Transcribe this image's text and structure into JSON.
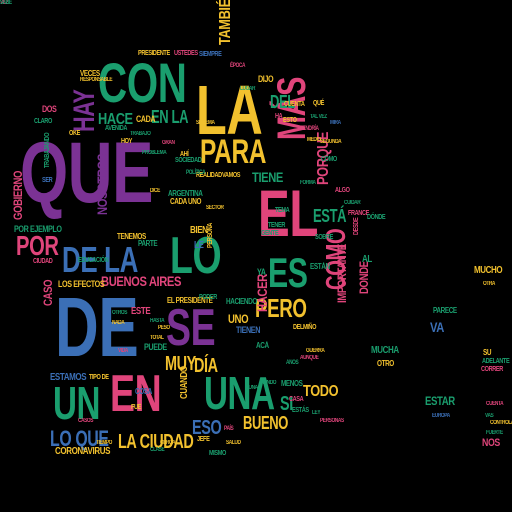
{
  "palette": {
    "background": "#000000",
    "purple": "#7B3294",
    "green": "#1A9E6E",
    "yellow": "#F2C12E",
    "pink": "#E0457B",
    "blue": "#3B6FB6",
    "orange": "#E8902A",
    "teal": "#1FA8A0",
    "lime": "#9BC53D"
  },
  "words": [
    {
      "text": "QUE",
      "color": "purple"
    },
    {
      "text": "CON",
      "color": "green"
    },
    {
      "text": "LA",
      "color": "yellow"
    },
    {
      "text": "PARA",
      "color": "yellow"
    },
    {
      "text": "TAMBIÉN",
      "color": "yellow"
    },
    {
      "text": "MÁS",
      "color": "pink"
    },
    {
      "text": "EL",
      "color": "pink"
    },
    {
      "text": "DE",
      "color": "blue"
    },
    {
      "text": "LO",
      "color": "green"
    },
    {
      "text": "ES",
      "color": "green"
    },
    {
      "text": "POR",
      "color": "pink"
    },
    {
      "text": "DE LA",
      "color": "blue"
    },
    {
      "text": "SE",
      "color": "purple"
    },
    {
      "text": "EN",
      "color": "pink"
    },
    {
      "text": "UN",
      "color": "green"
    },
    {
      "text": "UNA",
      "color": "green"
    },
    {
      "text": "PERO",
      "color": "yellow"
    },
    {
      "text": "COMO",
      "color": "pink"
    },
    {
      "text": "LO QUE",
      "color": "blue"
    },
    {
      "text": "LA CIUDAD",
      "color": "yellow"
    },
    {
      "text": "HAY",
      "color": "purple"
    },
    {
      "text": "HACE",
      "color": "green"
    },
    {
      "text": "EN LA",
      "color": "green"
    },
    {
      "text": "DEL",
      "color": "green"
    },
    {
      "text": "ESTÁ",
      "color": "green"
    },
    {
      "text": "PORQUE",
      "color": "pink"
    },
    {
      "text": "MUY",
      "color": "yellow"
    },
    {
      "text": "DÍA",
      "color": "yellow"
    },
    {
      "text": "ESO",
      "color": "blue"
    },
    {
      "text": "BUENO",
      "color": "yellow"
    },
    {
      "text": "SI",
      "color": "green"
    },
    {
      "text": "TODO",
      "color": "yellow"
    },
    {
      "text": "HACER",
      "color": "pink"
    },
    {
      "text": "TIENE",
      "color": "green"
    },
    {
      "text": "NOSOTROS",
      "color": "purple"
    },
    {
      "text": "GOBIERNO",
      "color": "pink"
    },
    {
      "text": "BUENOS AIRES",
      "color": "pink"
    },
    {
      "text": "VA",
      "color": "blue"
    },
    {
      "text": "MUCHO",
      "color": "yellow"
    },
    {
      "text": "NOS",
      "color": "pink"
    },
    {
      "text": "ESTAR",
      "color": "green"
    },
    {
      "text": "CORONAVIRUS",
      "color": "yellow"
    },
    {
      "text": "CUANDO",
      "color": "yellow"
    },
    {
      "text": "DONDE",
      "color": "pink"
    },
    {
      "text": "IMPORTANTE",
      "color": "pink"
    },
    {
      "text": "POR EJEMPLO",
      "color": "green"
    },
    {
      "text": "DOS",
      "color": "pink"
    },
    {
      "text": "VECES",
      "color": "yellow"
    },
    {
      "text": "CASO",
      "color": "pink"
    },
    {
      "text": "ESTAMOS",
      "color": "blue"
    },
    {
      "text": "UNO",
      "color": "yellow"
    },
    {
      "text": "BIEN",
      "color": "yellow"
    },
    {
      "text": "TIENEN",
      "color": "blue"
    },
    {
      "text": "ESTE",
      "color": "pink"
    },
    {
      "text": "LOS EFECTOS",
      "color": "yellow"
    },
    {
      "text": "MUCHA",
      "color": "green"
    },
    {
      "text": "EL PRESIDENTE",
      "color": "yellow"
    },
    {
      "text": "PUEDE",
      "color": "green"
    },
    {
      "text": "AL",
      "color": "green"
    },
    {
      "text": "DIJO",
      "color": "yellow"
    },
    {
      "text": "HACIENDO",
      "color": "green"
    },
    {
      "text": "TENEMOS",
      "color": "yellow"
    },
    {
      "text": "ESTÁN",
      "color": "green"
    },
    {
      "text": "CADA",
      "color": "yellow"
    },
    {
      "text": "LE",
      "color": "blue"
    },
    {
      "text": "YA",
      "color": "green"
    },
    {
      "text": "PARTE",
      "color": "green"
    },
    {
      "text": "OTRO",
      "color": "yellow"
    },
    {
      "text": "PARECE",
      "color": "green"
    },
    {
      "text": "CADA UNO",
      "color": "yellow"
    },
    {
      "text": "ARGENTINA",
      "color": "green"
    },
    {
      "text": "PRESIDENTE",
      "color": "yellow"
    },
    {
      "text": "USTEDES",
      "color": "pink"
    },
    {
      "text": "SIEMPRE",
      "color": "blue"
    },
    {
      "text": "COSA",
      "color": "blue"
    },
    {
      "text": "MENOS",
      "color": "green"
    },
    {
      "text": "ACÁ",
      "color": "green"
    },
    {
      "text": "JEFE",
      "color": "yellow"
    },
    {
      "text": "MISMO",
      "color": "green"
    },
    {
      "text": "TIPO DE",
      "color": "yellow"
    },
    {
      "text": "FRANCE",
      "color": "pink"
    },
    {
      "text": "SOBRE",
      "color": "green"
    },
    {
      "text": "PERSONA",
      "color": "yellow"
    },
    {
      "text": "SOCIEDAD",
      "color": "green"
    },
    {
      "text": "REALIDAD",
      "color": "yellow"
    },
    {
      "text": "VAMOS",
      "color": "yellow"
    },
    {
      "text": "EDUCACIÓN",
      "color": "green"
    },
    {
      "text": "CLARO",
      "color": "green"
    },
    {
      "text": "AVENIDA",
      "color": "green"
    },
    {
      "text": "TRABAJANDO",
      "color": "green"
    },
    {
      "text": "SER",
      "color": "blue"
    },
    {
      "text": "CIUDAD",
      "color": "pink"
    },
    {
      "text": "CASA",
      "color": "pink"
    },
    {
      "text": "DELMIÑO",
      "color": "yellow"
    },
    {
      "text": "AHÍ",
      "color": "yellow"
    },
    {
      "text": "OKE",
      "color": "yellow"
    },
    {
      "text": "TEMA",
      "color": "green"
    },
    {
      "text": "TENER",
      "color": "green"
    },
    {
      "text": "GENTE",
      "color": "green"
    },
    {
      "text": "OTRA",
      "color": "yellow"
    },
    {
      "text": "PODER",
      "color": "green"
    },
    {
      "text": "DESDE",
      "color": "pink"
    },
    {
      "text": "CUENTA",
      "color": "yellow"
    },
    {
      "text": "SU",
      "color": "yellow"
    },
    {
      "text": "ADELANTE",
      "color": "green"
    },
    {
      "text": "ESTO",
      "color": "yellow"
    },
    {
      "text": "ALGO",
      "color": "pink"
    },
    {
      "text": "ESTÁS",
      "color": "green"
    },
    {
      "text": "CORRER",
      "color": "pink"
    },
    {
      "text": "DÓNDE",
      "color": "green"
    },
    {
      "text": "CÓMO",
      "color": "green"
    },
    {
      "text": "FUE",
      "color": "yellow"
    },
    {
      "text": "HOY",
      "color": "yellow"
    },
    {
      "text": "HA",
      "color": "pink"
    },
    {
      "text": "QUÉ",
      "color": "yellow"
    },
    {
      "text": "RESPONSABLE",
      "color": "yellow"
    },
    {
      "text": "EUROPA",
      "color": "blue"
    },
    {
      "text": "CUENTA",
      "color": "pink"
    },
    {
      "text": "VAS",
      "color": "green"
    },
    {
      "text": "DICE",
      "color": "yellow"
    },
    {
      "text": "TRABAJO",
      "color": "green"
    },
    {
      "text": "SEGUNDA",
      "color": "yellow"
    },
    {
      "text": "MEDIO",
      "color": "yellow"
    },
    {
      "text": "FUERTE",
      "color": "green"
    },
    {
      "text": "CONTROLAR",
      "color": "yellow"
    },
    {
      "text": "TAL VEZ",
      "color": "green"
    },
    {
      "text": "TENDRÍA",
      "color": "pink"
    },
    {
      "text": "MIRA",
      "color": "blue"
    },
    {
      "text": "CUIDAR",
      "color": "green"
    },
    {
      "text": "ÉPOCA",
      "color": "pink"
    },
    {
      "text": "LUGAR",
      "color": "green"
    },
    {
      "text": "SALUD",
      "color": "yellow"
    },
    {
      "text": "PAÍS",
      "color": "pink"
    },
    {
      "text": "CLASE",
      "color": "green"
    },
    {
      "text": "CERCA",
      "color": "yellow"
    },
    {
      "text": "AÑOS",
      "color": "green"
    },
    {
      "text": "AUNQUE",
      "color": "pink"
    },
    {
      "text": "GUERRA",
      "color": "yellow"
    },
    {
      "text": "LEY",
      "color": "green"
    },
    {
      "text": "PERSONAS",
      "color": "pink"
    },
    {
      "text": "LUNA",
      "color": "green"
    },
    {
      "text": "MUNDO",
      "color": "green"
    },
    {
      "text": "TOTAL",
      "color": "yellow"
    },
    {
      "text": "PESO",
      "color": "yellow"
    },
    {
      "text": "HASTA",
      "color": "green"
    },
    {
      "text": "VIDA",
      "color": "pink"
    },
    {
      "text": "NADA",
      "color": "yellow"
    },
    {
      "text": "OTROS",
      "color": "green"
    },
    {
      "text": "TIEMPO",
      "color": "yellow"
    },
    {
      "text": "CASOS",
      "color": "pink"
    },
    {
      "text": "POLÍTICA",
      "color": "green"
    },
    {
      "text": "SECTOR",
      "color": "yellow"
    },
    {
      "text": "PROBLEMA",
      "color": "green"
    },
    {
      "text": "GRAN",
      "color": "pink"
    },
    {
      "text": "SISTEMA",
      "color": "yellow"
    },
    {
      "text": "FORMA",
      "color": "green"
    },
    {
      "text": "VEZ",
      "color": "pink"
    },
    {
      "text": "SABE",
      "color": "green"
    }
  ]
}
